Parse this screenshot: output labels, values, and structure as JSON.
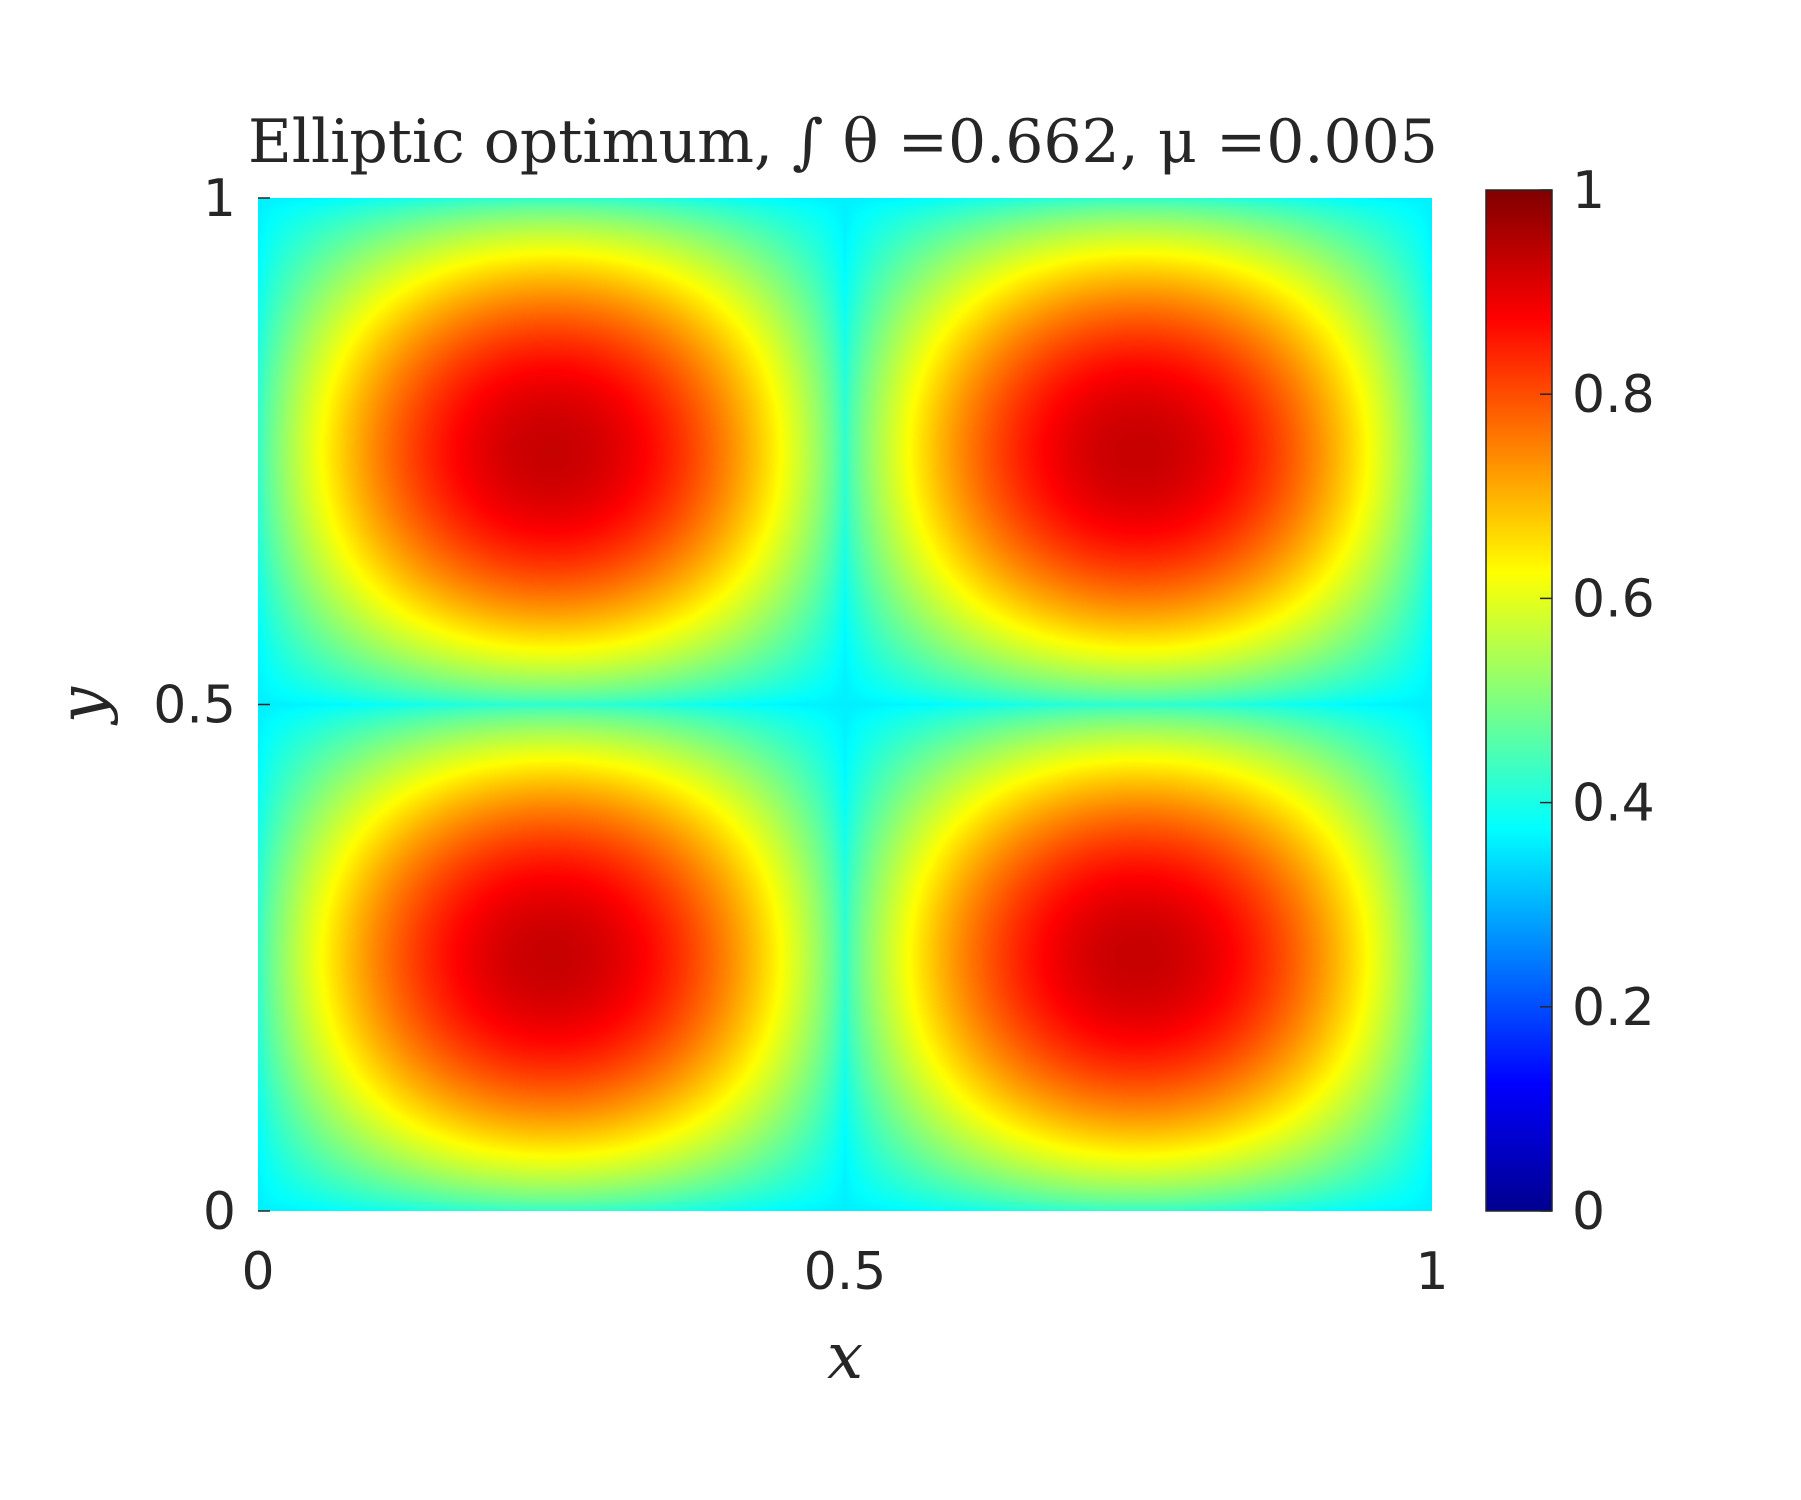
{
  "chart_data": {
    "type": "heatmap",
    "title": "Elliptic optimum, ∫ θ =0.662, μ =0.005",
    "xlabel": "x",
    "ylabel": "y",
    "xlim": [
      0,
      1
    ],
    "ylim": [
      0,
      1
    ],
    "xticks": [
      "0",
      "0.5",
      "1"
    ],
    "yticks": [
      "0",
      "0.5",
      "1"
    ],
    "colormap": "jet",
    "clim": [
      0,
      1
    ],
    "colorbar_ticks": [
      "0",
      "0.2",
      "0.4",
      "0.6",
      "0.8",
      "1"
    ],
    "grid": false,
    "field": {
      "description_of_values": "theta(x,y) sampled field",
      "max_value": 0.93,
      "min_value": 0.36,
      "maxima": [
        [
          0.25,
          0.25
        ],
        [
          0.75,
          0.25
        ],
        [
          0.25,
          0.75
        ],
        [
          0.75,
          0.75
        ]
      ],
      "minima": [
        [
          0.5,
          0.5
        ],
        [
          0,
          0.5
        ],
        [
          1,
          0.5
        ],
        [
          0.5,
          0
        ],
        [
          0.5,
          1
        ],
        [
          0,
          0
        ],
        [
          1,
          0
        ],
        [
          0,
          1
        ],
        [
          1,
          1
        ]
      ]
    },
    "colors": {
      "text": "#262626",
      "axis": "#262626",
      "background": "#ffffff"
    }
  }
}
